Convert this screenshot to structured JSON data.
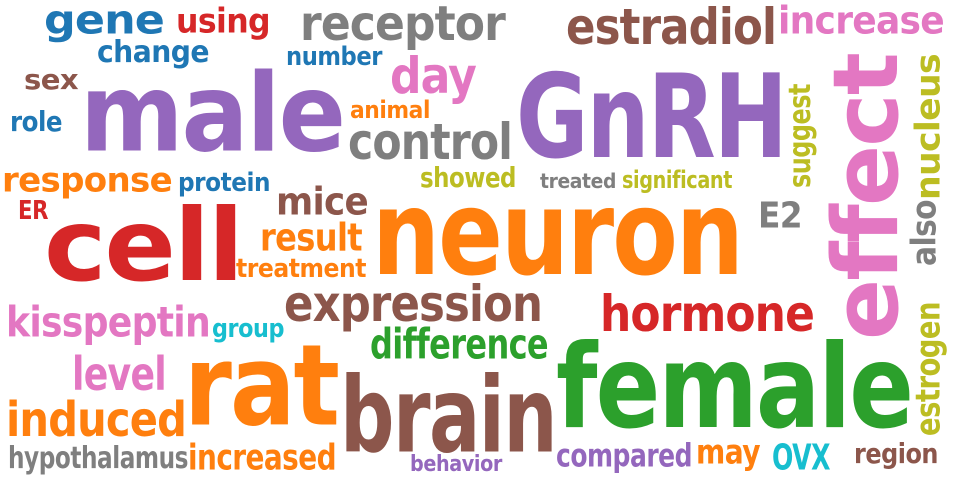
{
  "words": [
    {
      "text": "gene",
      "color": "#1f77b4"
    },
    {
      "text": "using",
      "color": "#d62728"
    },
    {
      "text": "receptor",
      "color": "#7f7f7f"
    },
    {
      "text": "estradiol",
      "color": "#8c564b"
    },
    {
      "text": "increase",
      "color": "#e377c2"
    },
    {
      "text": "change",
      "color": "#1f77b4"
    },
    {
      "text": "number",
      "color": "#1f77b4"
    },
    {
      "text": "sex",
      "color": "#8c564b"
    },
    {
      "text": "male",
      "color": "#9467bd"
    },
    {
      "text": "day",
      "color": "#e377c2"
    },
    {
      "text": "GnRH",
      "color": "#9467bd"
    },
    {
      "text": "effect",
      "color": "#e377c2"
    },
    {
      "text": "nucleus",
      "color": "#bcbd22"
    },
    {
      "text": "suggest",
      "color": "#bcbd22"
    },
    {
      "text": "role",
      "color": "#1f77b4"
    },
    {
      "text": "animal",
      "color": "#ff7f0e"
    },
    {
      "text": "control",
      "color": "#7f7f7f"
    },
    {
      "text": "response",
      "color": "#ff7f0e"
    },
    {
      "text": "protein",
      "color": "#1f77b4"
    },
    {
      "text": "showed",
      "color": "#bcbd22"
    },
    {
      "text": "treated",
      "color": "#7f7f7f"
    },
    {
      "text": "significant",
      "color": "#bcbd22"
    },
    {
      "text": "ER",
      "color": "#d62728"
    },
    {
      "text": "cell",
      "color": "#d62728"
    },
    {
      "text": "mice",
      "color": "#8c564b"
    },
    {
      "text": "neuron",
      "color": "#ff7f0e"
    },
    {
      "text": "E2",
      "color": "#7f7f7f"
    },
    {
      "text": "also",
      "color": "#7f7f7f"
    },
    {
      "text": "result",
      "color": "#ff7f0e"
    },
    {
      "text": "treatment",
      "color": "#ff7f0e"
    },
    {
      "text": "expression",
      "color": "#8c564b"
    },
    {
      "text": "hormone",
      "color": "#d62728"
    },
    {
      "text": "kisspeptin",
      "color": "#e377c2"
    },
    {
      "text": "group",
      "color": "#17becf"
    },
    {
      "text": "difference",
      "color": "#2ca02c"
    },
    {
      "text": "estrogen",
      "color": "#bcbd22"
    },
    {
      "text": "level",
      "color": "#e377c2"
    },
    {
      "text": "rat",
      "color": "#ff7f0e"
    },
    {
      "text": "brain",
      "color": "#8c564b"
    },
    {
      "text": "female",
      "color": "#2ca02c"
    },
    {
      "text": "induced",
      "color": "#ff7f0e"
    },
    {
      "text": "hypothalamus",
      "color": "#7f7f7f"
    },
    {
      "text": "increased",
      "color": "#ff7f0e"
    },
    {
      "text": "behavior",
      "color": "#9467bd"
    },
    {
      "text": "compared",
      "color": "#9467bd"
    },
    {
      "text": "may",
      "color": "#ff7f0e"
    },
    {
      "text": "OVX",
      "color": "#17becf"
    },
    {
      "text": "region",
      "color": "#8c564b"
    }
  ]
}
